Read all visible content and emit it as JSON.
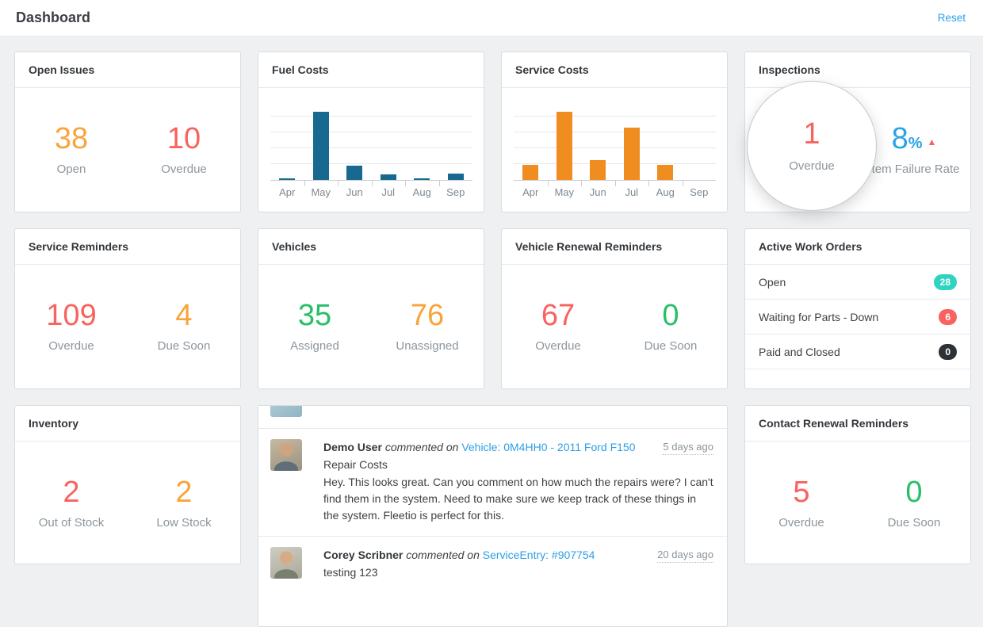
{
  "colors": {
    "orange": "#f9a43b",
    "red": "#f8625f",
    "green": "#27bf67",
    "blue": "#2ba3e8",
    "link": "#2d9fe5",
    "teal_badge": "#2fd3c1",
    "red_badge": "#f8625f",
    "dark_badge": "#2e3238"
  },
  "header": {
    "title": "Dashboard",
    "reset_label": "Reset"
  },
  "cards": {
    "open_issues": {
      "title": "Open Issues",
      "stat1": {
        "value": "38",
        "label": "Open"
      },
      "stat2": {
        "value": "10",
        "label": "Overdue"
      }
    },
    "fuel_costs": {
      "title": "Fuel Costs"
    },
    "service_costs": {
      "title": "Service Costs"
    },
    "inspections": {
      "title": "Inspections",
      "stat1": {
        "value": "1",
        "label": "Overdue"
      },
      "stat2": {
        "value": "8",
        "unit": "%",
        "trend": "up",
        "trend_icon": "▲",
        "label": "Item Failure Rate"
      }
    },
    "service_reminders": {
      "title": "Service Reminders",
      "stat1": {
        "value": "109",
        "label": "Overdue"
      },
      "stat2": {
        "value": "4",
        "label": "Due Soon"
      }
    },
    "vehicles": {
      "title": "Vehicles",
      "stat1": {
        "value": "35",
        "label": "Assigned"
      },
      "stat2": {
        "value": "76",
        "label": "Unassigned"
      }
    },
    "vehicle_renewals": {
      "title": "Vehicle Renewal Reminders",
      "stat1": {
        "value": "67",
        "label": "Overdue"
      },
      "stat2": {
        "value": "0",
        "label": "Due Soon"
      }
    },
    "work_orders": {
      "title": "Active Work Orders",
      "rows": [
        {
          "label": "Open",
          "count": "28",
          "color": "#2fd3c1"
        },
        {
          "label": "Waiting for Parts - Down",
          "count": "6",
          "color": "#f8625f"
        },
        {
          "label": "Paid and Closed",
          "count": "0",
          "color": "#2e3238"
        }
      ]
    },
    "inventory": {
      "title": "Inventory",
      "stat1": {
        "value": "2",
        "label": "Out of Stock"
      },
      "stat2": {
        "value": "2",
        "label": "Low Stock"
      }
    },
    "contact_renewals": {
      "title": "Contact Renewal Reminders",
      "stat1": {
        "value": "5",
        "label": "Overdue"
      },
      "stat2": {
        "value": "0",
        "label": "Due Soon"
      }
    },
    "comments": {
      "items": [
        {
          "author": "Demo User",
          "action": "commented on",
          "link": "Vehicle: 0M4HH0 - 2011 Ford F150",
          "time": "5 days ago",
          "subject": "Repair Costs",
          "body": "Hey. This looks great. Can you comment on how much the repairs were? I can't find them in the system. Need to make sure we keep track of these things in the system. Fleetio is perfect for this."
        },
        {
          "author": "Corey Scribner",
          "action": "commented on",
          "link": "ServiceEntry: #907754",
          "time": "20 days ago",
          "subject": "testing 123"
        }
      ]
    }
  },
  "chart_data": [
    {
      "type": "bar",
      "title": "Fuel Costs",
      "categories": [
        "Apr",
        "May",
        "Jun",
        "Jul",
        "Aug",
        "Sep"
      ],
      "values_percent_of_max": [
        2,
        95,
        20,
        8,
        2,
        9
      ],
      "bar_color": "#17698f",
      "xlabel": "",
      "ylabel": "",
      "ylim": [
        0,
        100
      ],
      "grid": true,
      "y_axis_labels": false,
      "legend": false
    },
    {
      "type": "bar",
      "title": "Service Costs",
      "categories": [
        "Apr",
        "May",
        "Jun",
        "Jul",
        "Aug",
        "Sep"
      ],
      "values_percent_of_max": [
        21,
        95,
        28,
        72,
        21,
        0
      ],
      "bar_color": "#ef8d20",
      "xlabel": "",
      "ylabel": "",
      "ylim": [
        0,
        100
      ],
      "grid": true,
      "y_axis_labels": false,
      "legend": false
    }
  ]
}
